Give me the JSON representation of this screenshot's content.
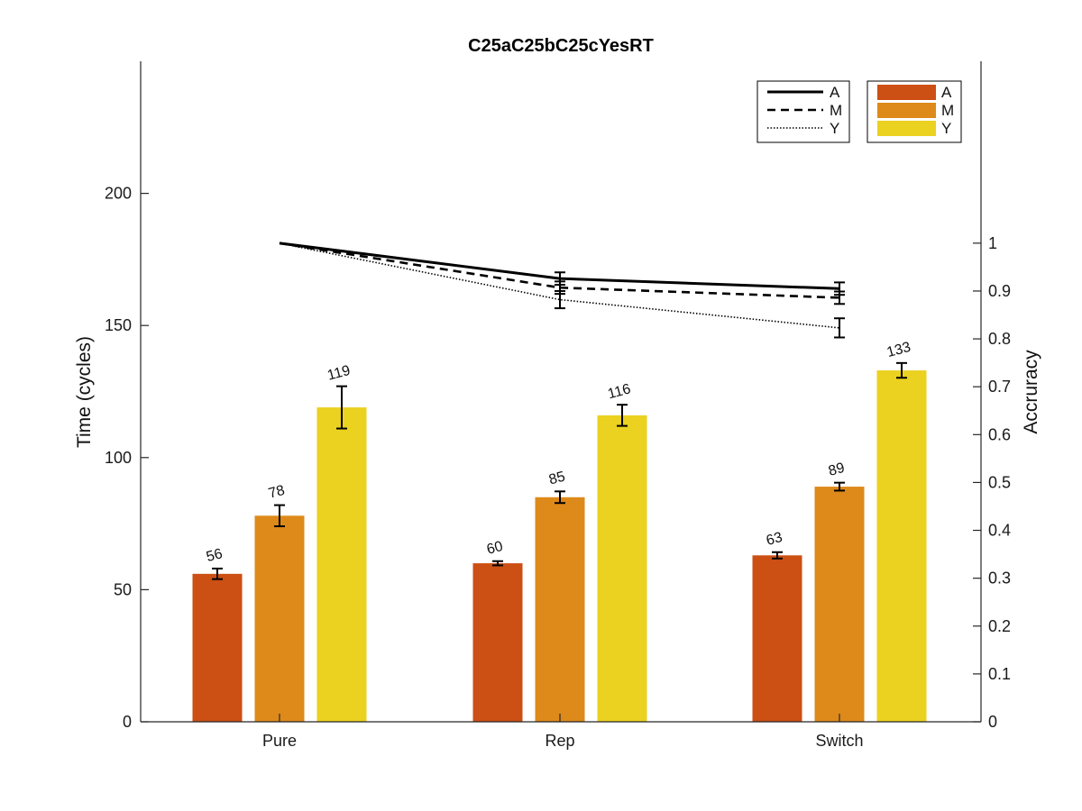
{
  "chart_data": {
    "type": "bar",
    "title": "C25aC25bC25cYesRT",
    "categories": [
      "Pure",
      "Rep",
      "Switch"
    ],
    "left_axis": {
      "label": "Time (cycles)",
      "ylim": [
        0,
        250
      ],
      "ticks": [
        0,
        50,
        100,
        150,
        200
      ]
    },
    "right_axis": {
      "label": "Accruracy",
      "ylim": [
        0,
        1.38
      ],
      "ticks": [
        0,
        0.1,
        0.2,
        0.3,
        0.4,
        0.5,
        0.6,
        0.7,
        0.8,
        0.9,
        1
      ],
      "tick_labels": [
        "0",
        "0.1",
        "0.2",
        "0.3",
        "0.4",
        "0.5",
        "0.6",
        "0.7",
        "0.8",
        "0.9",
        "1"
      ]
    },
    "grid": false,
    "bar_series": [
      {
        "name": "A",
        "color": "#cc4f14",
        "values": [
          56,
          60,
          63
        ],
        "labels": [
          "56",
          "60",
          "63"
        ],
        "errors": [
          2,
          0.8,
          1.2
        ]
      },
      {
        "name": "M",
        "color": "#dd8a1a",
        "values": [
          78,
          85,
          89
        ],
        "labels": [
          "78",
          "85",
          "89"
        ],
        "errors": [
          4,
          2.2,
          1.5
        ]
      },
      {
        "name": "Y",
        "color": "#ebd120",
        "values": [
          119,
          116,
          133
        ],
        "labels": [
          "119",
          "116",
          "133"
        ],
        "errors": [
          8,
          4,
          2.8
        ]
      }
    ],
    "line_series": [
      {
        "name": "A",
        "style": "solid",
        "values": [
          1.0,
          0.926,
          0.905
        ],
        "errors": [
          0,
          0.013,
          0.013
        ]
      },
      {
        "name": "M",
        "style": "dashed",
        "values": [
          1.0,
          0.907,
          0.886
        ],
        "errors": [
          0,
          0.013,
          0.013
        ]
      },
      {
        "name": "Y",
        "style": "dotted",
        "values": [
          1.0,
          0.882,
          0.823
        ],
        "errors": [
          0,
          0.018,
          0.02
        ]
      }
    ],
    "legends": [
      "top-right (lines)",
      "top-right (bars)"
    ]
  }
}
